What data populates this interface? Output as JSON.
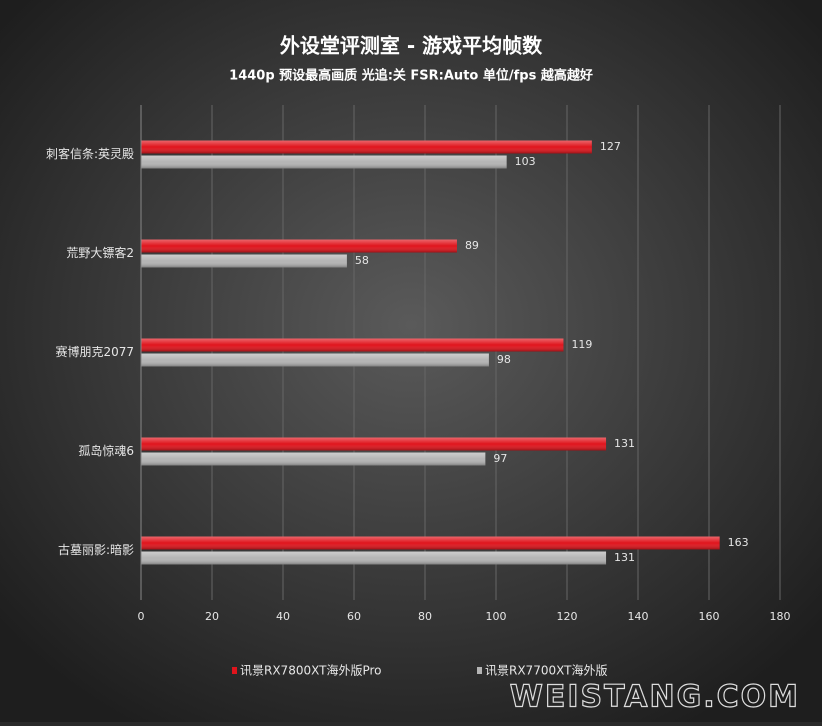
{
  "chart_data": {
    "type": "bar",
    "orientation": "horizontal",
    "title": "外设堂评测室  -  游戏平均帧数",
    "subtitle": "1440p  预设最高画质  光追:关  FSR:Auto  单位/fps  越高越好",
    "categories": [
      "刺客信条:英灵殿",
      "荒野大镖客2",
      "赛博朋克2077",
      "孤岛惊魂6",
      "古墓丽影:暗影"
    ],
    "series": [
      {
        "name": "讯景RX7800XT海外版Pro",
        "color": "#e0141c",
        "values": [
          127,
          89,
          119,
          131,
          163
        ]
      },
      {
        "name": "讯景RX7700XT海外版",
        "color": "#b4b4b4",
        "values": [
          103,
          58,
          98,
          97,
          131
        ]
      }
    ],
    "xlim": [
      0,
      180
    ],
    "xticks": [
      0,
      20,
      40,
      60,
      80,
      100,
      120,
      140,
      160,
      180
    ],
    "grid": true,
    "legend": "bottom",
    "watermark": "WEISTANG.COM"
  }
}
